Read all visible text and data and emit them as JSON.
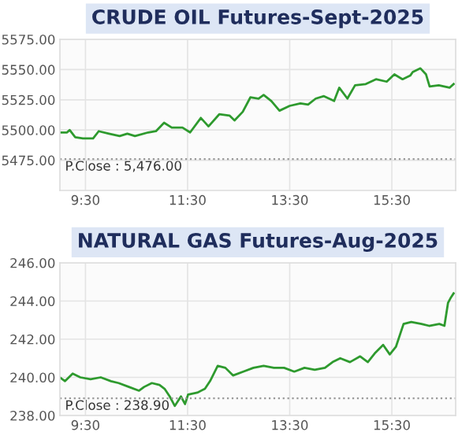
{
  "chart_data": [
    {
      "type": "line",
      "title": "CRUDE OIL Futures-Sept-2025",
      "xlim": [
        9.0,
        16.75
      ],
      "xticks": [
        {
          "value": 9.5,
          "label": "9:30"
        },
        {
          "value": 11.5,
          "label": "11:30"
        },
        {
          "value": 13.5,
          "label": "13:30"
        },
        {
          "value": 15.5,
          "label": "15:30"
        }
      ],
      "ylim": [
        5450,
        5575
      ],
      "yticks": [
        {
          "value": 5475,
          "label": "5475.00"
        },
        {
          "value": 5500,
          "label": "5500.00"
        },
        {
          "value": 5525,
          "label": "5525.00"
        },
        {
          "value": 5550,
          "label": "5550.00"
        },
        {
          "value": 5575,
          "label": "5575.00"
        }
      ],
      "grid": true,
      "marker": "none",
      "line_style": "solid",
      "ref_lines": [
        {
          "axis": "y",
          "value": 5476,
          "label": "P.Close : 5,476.00",
          "color": "#999999",
          "line_style": "dotted"
        }
      ],
      "series": [
        {
          "color": "#2e9a2e",
          "x": [
            9.0,
            9.14,
            9.19,
            9.3,
            9.45,
            9.65,
            9.76,
            9.96,
            10.17,
            10.32,
            10.47,
            10.73,
            10.88,
            11.04,
            11.19,
            11.4,
            11.55,
            11.76,
            11.91,
            12.12,
            12.32,
            12.42,
            12.58,
            12.73,
            12.89,
            12.99,
            13.14,
            13.3,
            13.5,
            13.71,
            13.86,
            14.01,
            14.17,
            14.37,
            14.47,
            14.63,
            14.78,
            14.99,
            15.19,
            15.4,
            15.55,
            15.71,
            15.86,
            15.91,
            16.06,
            16.17,
            16.24,
            16.42,
            16.63,
            16.71
          ],
          "values": [
            5498,
            5498,
            5500,
            5494,
            5493,
            5493,
            5499,
            5497,
            5495,
            5497,
            5495,
            5498,
            5499,
            5506,
            5502,
            5502,
            5498,
            5510,
            5503,
            5513,
            5512,
            5508,
            5515,
            5527,
            5526,
            5529,
            5524,
            5516,
            5520,
            5522,
            5521,
            5526,
            5528,
            5524,
            5535,
            5526,
            5537,
            5538,
            5542,
            5540,
            5546,
            5542,
            5545,
            5548,
            5551,
            5546,
            5536,
            5537,
            5535,
            5538
          ]
        }
      ]
    },
    {
      "type": "line",
      "title": "NATURAL GAS Futures-Aug-2025",
      "xlim": [
        9.0,
        16.75
      ],
      "xticks": [
        {
          "value": 9.5,
          "label": "9:30"
        },
        {
          "value": 11.5,
          "label": "11:30"
        },
        {
          "value": 13.5,
          "label": "13:30"
        },
        {
          "value": 15.5,
          "label": "15:30"
        }
      ],
      "ylim": [
        238,
        246
      ],
      "yticks": [
        {
          "value": 238,
          "label": "238.00"
        },
        {
          "value": 240,
          "label": "240.00"
        },
        {
          "value": 242,
          "label": "242.00"
        },
        {
          "value": 244,
          "label": "244.00"
        },
        {
          "value": 246,
          "label": "246.00"
        }
      ],
      "grid": true,
      "marker": "none",
      "line_style": "solid",
      "ref_lines": [
        {
          "axis": "y",
          "value": 238.9,
          "label": "P.Close : 238.90",
          "color": "#999999",
          "line_style": "dotted"
        }
      ],
      "series": [
        {
          "color": "#2e9a2e",
          "x": [
            9.0,
            9.1,
            9.25,
            9.4,
            9.6,
            9.8,
            10.0,
            10.15,
            10.35,
            10.55,
            10.65,
            10.8,
            10.95,
            11.05,
            11.15,
            11.25,
            11.37,
            11.45,
            11.51,
            11.69,
            11.84,
            11.94,
            12.09,
            12.24,
            12.39,
            12.59,
            12.79,
            12.99,
            13.19,
            13.39,
            13.59,
            13.79,
            13.99,
            14.19,
            14.34,
            14.49,
            14.68,
            14.88,
            15.03,
            15.18,
            15.33,
            15.46,
            15.58,
            15.73,
            15.88,
            16.08,
            16.23,
            16.43,
            16.53,
            16.6,
            16.66,
            16.71
          ],
          "values": [
            240.0,
            239.8,
            240.2,
            240.0,
            239.9,
            240.0,
            239.8,
            239.7,
            239.5,
            239.3,
            239.5,
            239.7,
            239.6,
            239.4,
            239.0,
            238.5,
            239.0,
            238.6,
            239.1,
            239.2,
            239.4,
            239.8,
            240.6,
            240.5,
            240.1,
            240.3,
            240.5,
            240.6,
            240.5,
            240.5,
            240.3,
            240.5,
            240.4,
            240.5,
            240.8,
            241.0,
            240.8,
            241.1,
            240.8,
            241.3,
            241.7,
            241.2,
            241.6,
            242.8,
            242.9,
            242.8,
            242.7,
            242.8,
            242.7,
            243.9,
            244.2,
            244.4
          ]
        }
      ]
    }
  ]
}
